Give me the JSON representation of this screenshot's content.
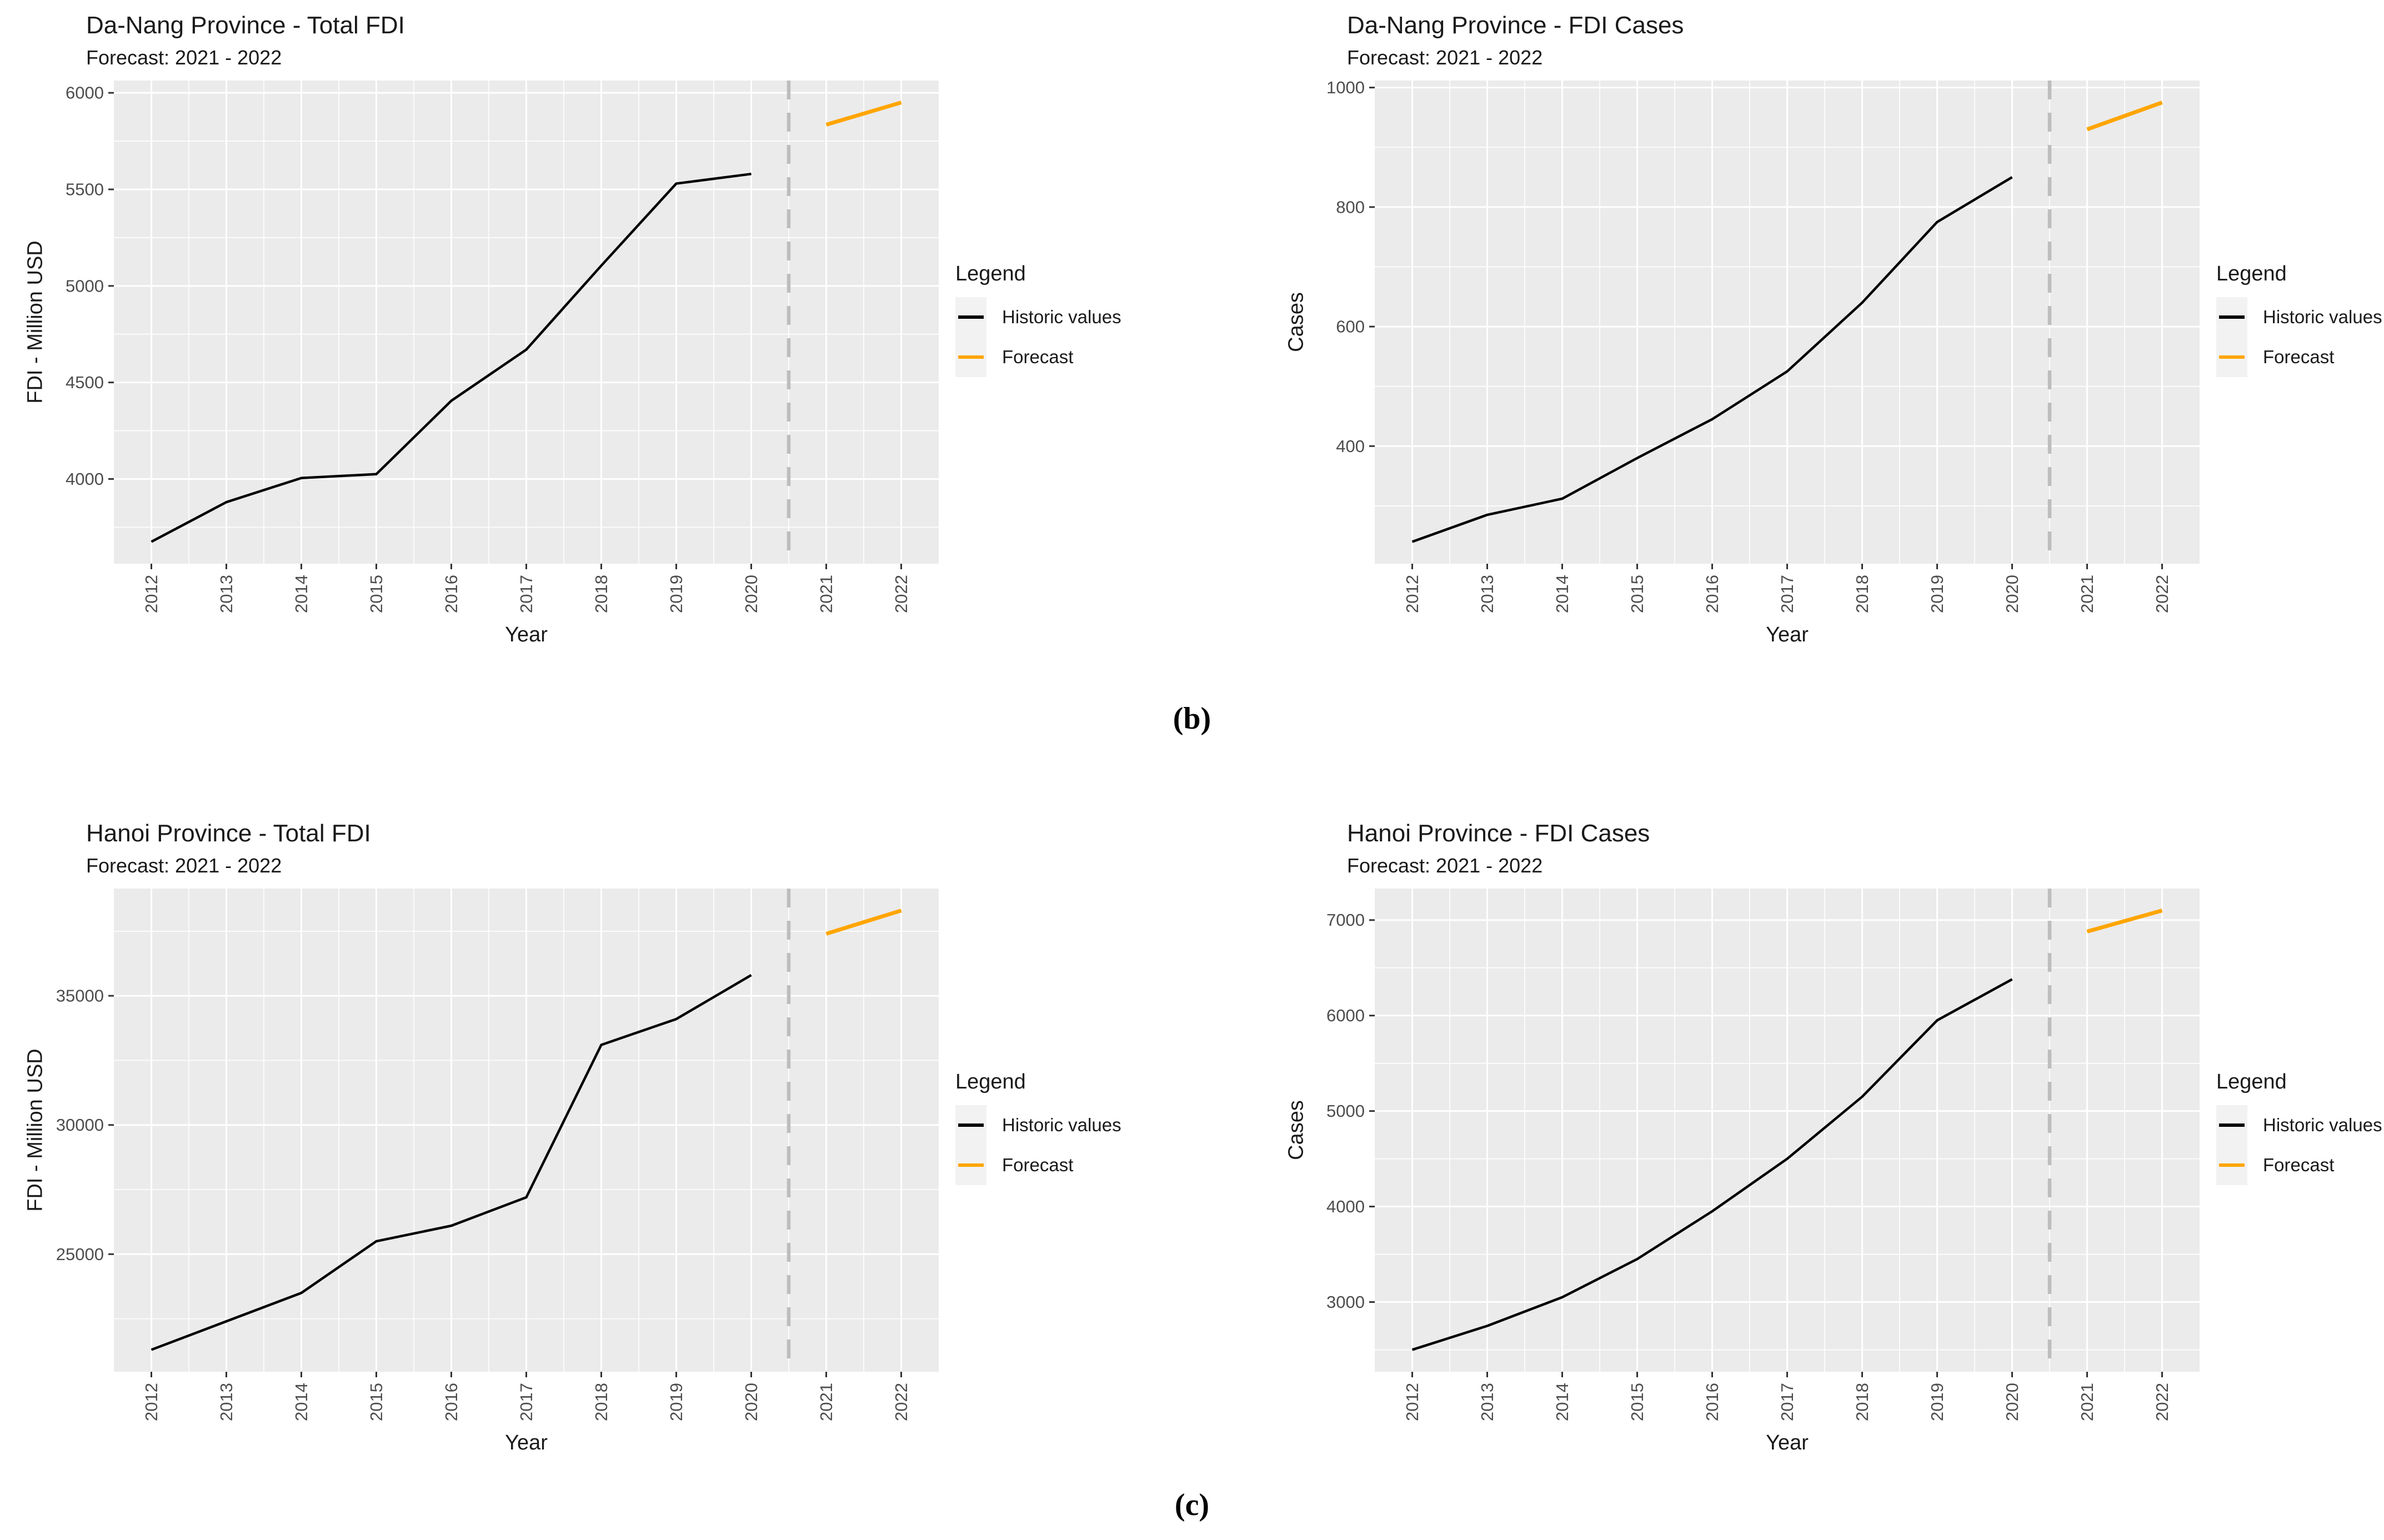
{
  "figure": {
    "background": "#FFFFFF",
    "label_b": "(b)",
    "label_c": "(c)"
  },
  "legend": {
    "title": "Legend",
    "items": [
      {
        "label": "Historic values",
        "color": "#000000"
      },
      {
        "label": "Forecast",
        "color": "#FFA500"
      }
    ]
  },
  "style": {
    "panel_bg": "#EBEBEB",
    "grid_color": "#FFFFFF",
    "divider_color": "#BDBDBD",
    "tick_mark_color": "#333333",
    "tick_text_color": "#4D4D4D",
    "text_color": "#1A1A1A",
    "legend_key_bg": "#F2F2F2"
  },
  "chart_data": [
    {
      "id": "da-nang-total-fdi",
      "type": "line",
      "title": "Da-Nang Province - Total FDI",
      "subtitle": "Forecast: 2021 - 2022",
      "xlabel": "Year",
      "ylabel": "FDI - Million USD",
      "x_ticks": [
        2012,
        2013,
        2014,
        2015,
        2016,
        2017,
        2018,
        2019,
        2020,
        2021,
        2022
      ],
      "y_ticks": [
        4000,
        4500,
        5000,
        5500,
        6000
      ],
      "forecast_divider_x": 2020.5,
      "grid": true,
      "legend_position": "right",
      "series": [
        {
          "name": "Historic values",
          "color": "#000000",
          "x": [
            2012,
            2013,
            2014,
            2015,
            2016,
            2017,
            2018,
            2019,
            2020
          ],
          "values": [
            3675,
            3880,
            4005,
            4025,
            4405,
            4670,
            5105,
            5530,
            5580
          ]
        },
        {
          "name": "Forecast",
          "color": "#FFA500",
          "x": [
            2021,
            2022
          ],
          "values": [
            5835,
            5950
          ]
        }
      ]
    },
    {
      "id": "da-nang-fdi-cases",
      "type": "line",
      "title": "Da-Nang Province - FDI Cases",
      "subtitle": "Forecast: 2021 - 2022",
      "xlabel": "Year",
      "ylabel": "Cases",
      "x_ticks": [
        2012,
        2013,
        2014,
        2015,
        2016,
        2017,
        2018,
        2019,
        2020,
        2021,
        2022
      ],
      "y_ticks": [
        400,
        600,
        800,
        1000
      ],
      "forecast_divider_x": 2020.5,
      "grid": true,
      "legend_position": "right",
      "series": [
        {
          "name": "Historic values",
          "color": "#000000",
          "x": [
            2012,
            2013,
            2014,
            2015,
            2016,
            2017,
            2018,
            2019,
            2020
          ],
          "values": [
            240,
            285,
            312,
            380,
            445,
            525,
            640,
            775,
            850
          ]
        },
        {
          "name": "Forecast",
          "color": "#FFA500",
          "x": [
            2021,
            2022
          ],
          "values": [
            930,
            975
          ]
        }
      ]
    },
    {
      "id": "hanoi-total-fdi",
      "type": "line",
      "title": "Hanoi Province - Total FDI",
      "subtitle": "Forecast: 2021 - 2022",
      "xlabel": "Year",
      "ylabel": "FDI - Million USD",
      "x_ticks": [
        2012,
        2013,
        2014,
        2015,
        2016,
        2017,
        2018,
        2019,
        2020,
        2021,
        2022
      ],
      "y_ticks": [
        25000,
        30000,
        35000
      ],
      "forecast_divider_x": 2020.5,
      "grid": true,
      "legend_position": "right",
      "series": [
        {
          "name": "Historic values",
          "color": "#000000",
          "x": [
            2012,
            2013,
            2014,
            2015,
            2016,
            2017,
            2018,
            2019,
            2020
          ],
          "values": [
            21300,
            22400,
            23500,
            25500,
            26100,
            27200,
            33100,
            34100,
            35800
          ]
        },
        {
          "name": "Forecast",
          "color": "#FFA500",
          "x": [
            2021,
            2022
          ],
          "values": [
            37400,
            38300
          ]
        }
      ]
    },
    {
      "id": "hanoi-fdi-cases",
      "type": "line",
      "title": "Hanoi Province - FDI Cases",
      "subtitle": "Forecast: 2021 - 2022",
      "xlabel": "Year",
      "ylabel": "Cases",
      "x_ticks": [
        2012,
        2013,
        2014,
        2015,
        2016,
        2017,
        2018,
        2019,
        2020,
        2021,
        2022
      ],
      "y_ticks": [
        3000,
        4000,
        5000,
        6000,
        7000
      ],
      "forecast_divider_x": 2020.5,
      "grid": true,
      "legend_position": "right",
      "series": [
        {
          "name": "Historic values",
          "color": "#000000",
          "x": [
            2012,
            2013,
            2014,
            2015,
            2016,
            2017,
            2018,
            2019,
            2020
          ],
          "values": [
            2500,
            2750,
            3050,
            3450,
            3950,
            4500,
            5150,
            5950,
            6380
          ]
        },
        {
          "name": "Forecast",
          "color": "#FFA500",
          "x": [
            2021,
            2022
          ],
          "values": [
            6880,
            7100
          ]
        }
      ]
    }
  ]
}
